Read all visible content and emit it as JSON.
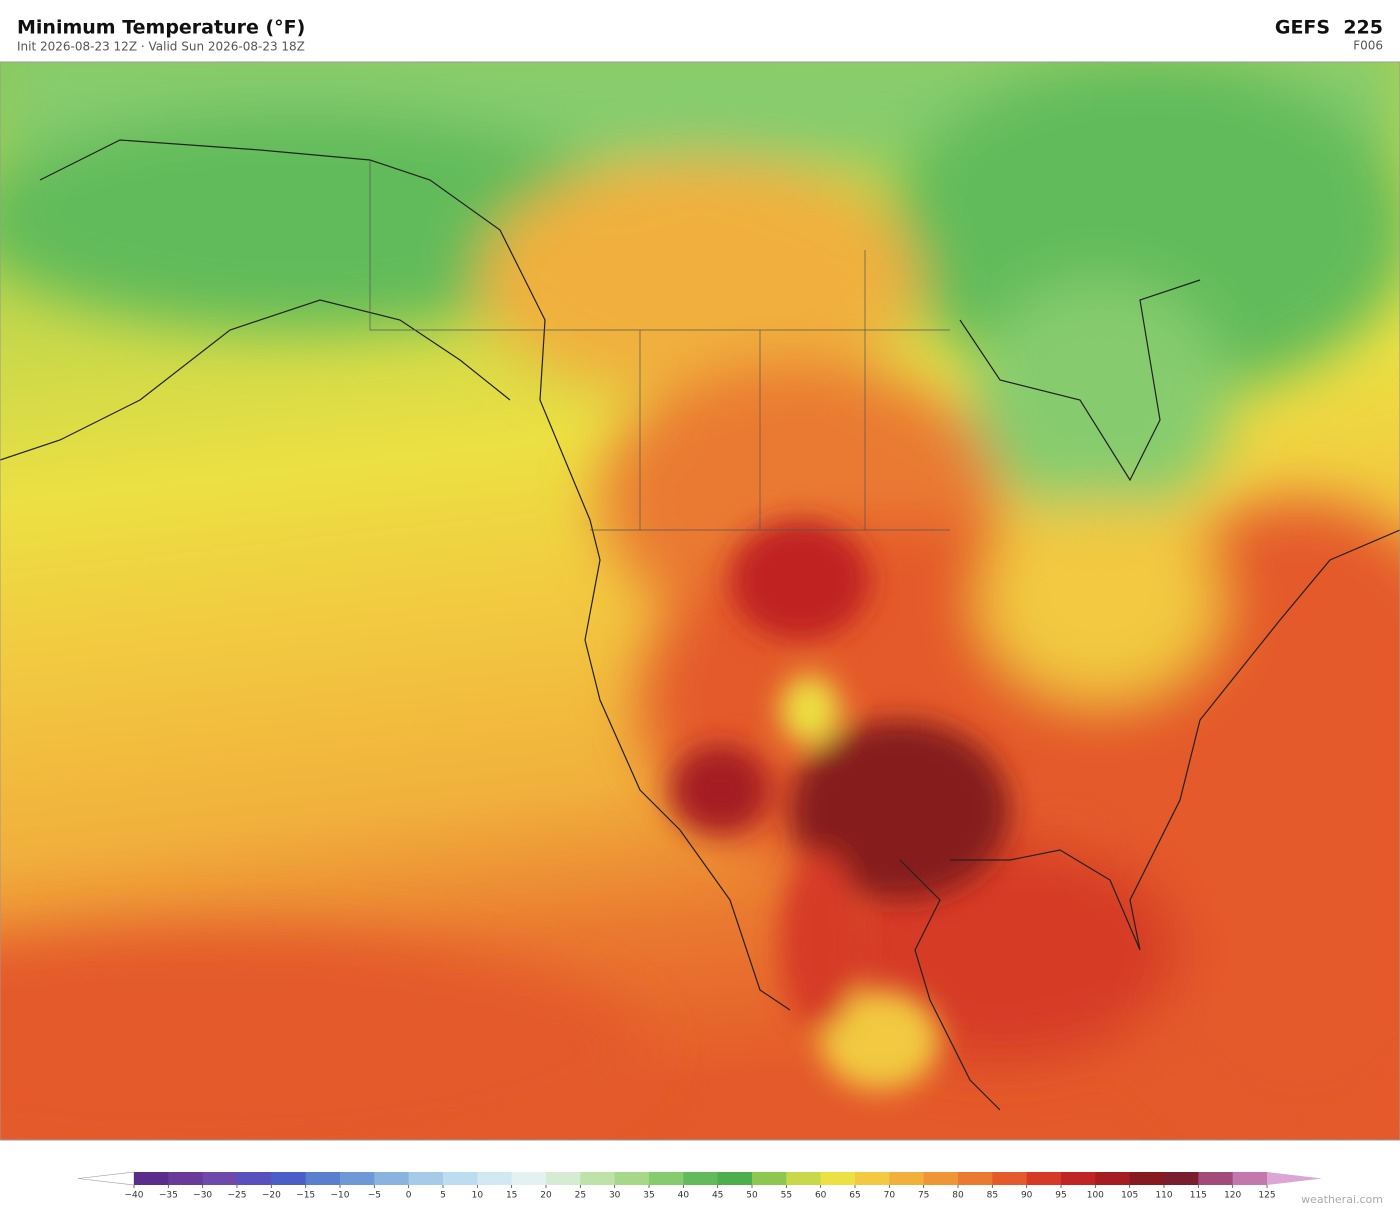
{
  "header": {
    "title": "Minimum Temperature  (°F)",
    "subtitle": "Init 2026-08-23 12Z  ·  Valid Sun 2026-08-23 18Z",
    "model": "GEFS  225",
    "forecast_hour": "F006"
  },
  "colorbar": {
    "ticks": [
      {
        "value": -40,
        "label": "−40"
      },
      {
        "value": -35,
        "label": "−35"
      },
      {
        "value": -30,
        "label": "−30"
      },
      {
        "value": -25,
        "label": "−25"
      },
      {
        "value": -20,
        "label": "−20"
      },
      {
        "value": -15,
        "label": "−15"
      },
      {
        "value": -10,
        "label": "−10"
      },
      {
        "value": -5,
        "label": "−5"
      },
      0,
      5,
      10,
      15,
      20,
      25,
      30,
      35,
      40,
      45,
      50,
      55,
      60,
      65,
      70,
      75,
      80,
      85,
      90,
      95,
      100,
      105,
      110,
      115,
      120,
      125
    ],
    "colors": [
      "#5a2d8c",
      "#6a3a9a",
      "#6e48aa",
      "#5a4fbf",
      "#4a5ec8",
      "#5b7fcf",
      "#6f99d6",
      "#8ab4df",
      "#a5cbe8",
      "#bcdcef",
      "#d2e9f3",
      "#e3f2f0",
      "#d6ecd2",
      "#bfe2a8",
      "#a5d889",
      "#86cc6e",
      "#62bb5a",
      "#4cae4c",
      "#8cc850",
      "#c8d84a",
      "#ece043",
      "#f2c940",
      "#f1b03c",
      "#ee9535",
      "#ea7a30",
      "#e45a2a",
      "#d63a26",
      "#c02424",
      "#a51d20",
      "#861a1e",
      "#7a1d2e",
      "#a24a7a",
      "#c278ad"
    ],
    "under_color": "#ffffff",
    "over_color": "#dba5d4"
  },
  "watermark": "weatherai.com"
}
